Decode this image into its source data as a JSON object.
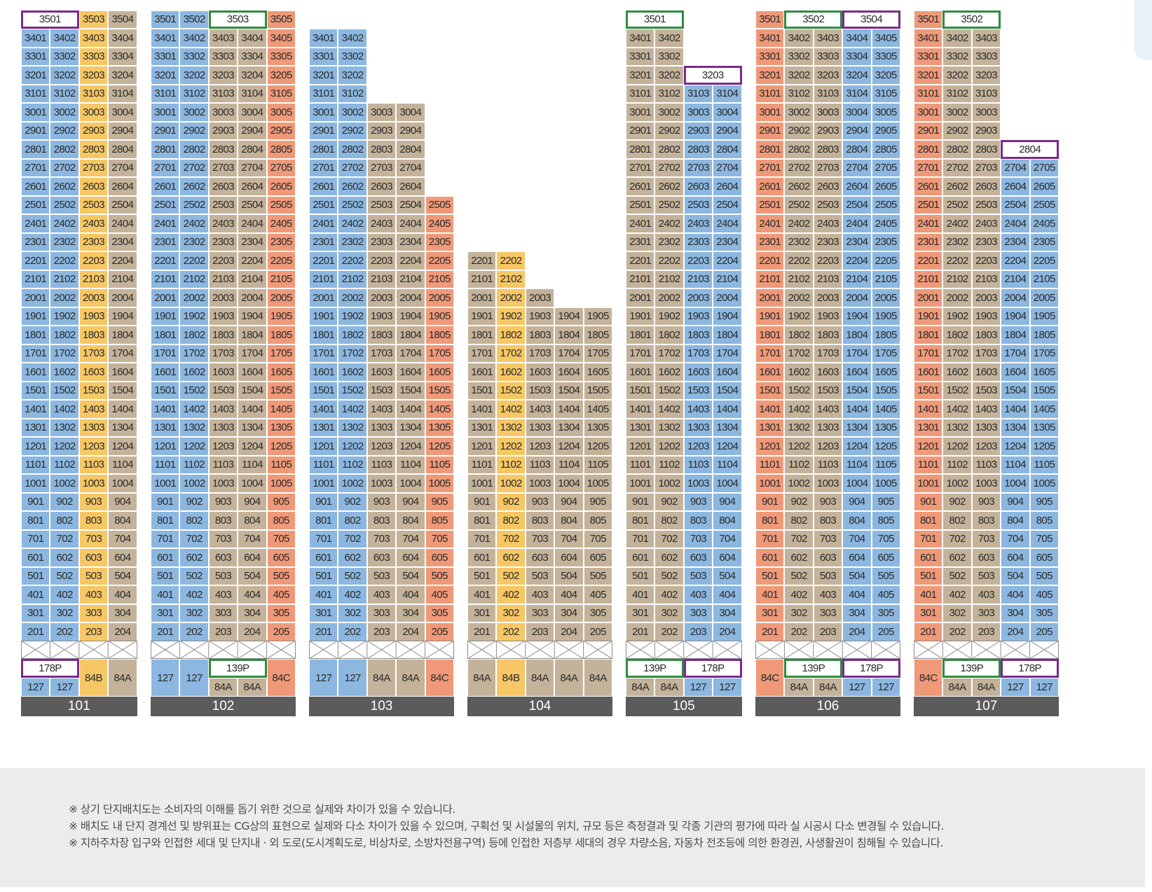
{
  "colors": {
    "blue": "#8cb7e0",
    "yellow": "#f6c764",
    "tan": "#c4b39a",
    "salmon": "#ef9979",
    "outline_purple": "#7a2a8c",
    "outline_green": "#2e8b3e"
  },
  "buildings": [
    {
      "name": "101",
      "columns": [
        {
          "color": "blue",
          "top": 35,
          "highlight": {
            "floor": 35,
            "outline": "purple",
            "span": 2
          }
        },
        {
          "color": "blue",
          "top": 34
        },
        {
          "color": "yellow",
          "top": 35
        },
        {
          "color": "tan",
          "top": 35
        }
      ],
      "pilotis": [
        {
          "cols": [
            0,
            1
          ],
          "top_label": "178P",
          "top_outline": "purple",
          "bottom": [
            "127",
            "127"
          ],
          "color": "blue"
        },
        {
          "cols": [
            2
          ],
          "label": "84B",
          "color": "yellow"
        },
        {
          "cols": [
            3
          ],
          "label": "84A",
          "color": "tan"
        }
      ]
    },
    {
      "name": "102",
      "columns": [
        {
          "color": "blue",
          "top": 35
        },
        {
          "color": "blue",
          "top": 35
        },
        {
          "color": "tan",
          "top": 35,
          "highlight": {
            "floor": 35,
            "outline": "green",
            "span": 2
          }
        },
        {
          "color": "tan",
          "top": 34
        },
        {
          "color": "salmon",
          "top": 35
        }
      ],
      "pilotis": [
        {
          "cols": [
            0
          ],
          "label": "127",
          "color": "blue"
        },
        {
          "cols": [
            1
          ],
          "label": "127",
          "color": "blue"
        },
        {
          "cols": [
            2,
            3
          ],
          "top_label": "139P",
          "top_outline": "green",
          "bottom": [
            "84A",
            "84A"
          ],
          "color": "tan"
        },
        {
          "cols": [
            4
          ],
          "label": "84C",
          "color": "salmon"
        }
      ]
    },
    {
      "name": "103",
      "columns": [
        {
          "color": "blue",
          "top": 34
        },
        {
          "color": "blue",
          "top": 34
        },
        {
          "color": "tan",
          "top": 30
        },
        {
          "color": "tan",
          "top": 30
        },
        {
          "color": "salmon",
          "top": 25
        }
      ],
      "pilotis": [
        {
          "cols": [
            0
          ],
          "label": "127",
          "color": "blue"
        },
        {
          "cols": [
            1
          ],
          "label": "127",
          "color": "blue"
        },
        {
          "cols": [
            2
          ],
          "label": "84A",
          "color": "tan"
        },
        {
          "cols": [
            3
          ],
          "label": "84A",
          "color": "tan"
        },
        {
          "cols": [
            4
          ],
          "label": "84C",
          "color": "salmon"
        }
      ]
    },
    {
      "name": "104",
      "columns": [
        {
          "color": "tan",
          "top": 22
        },
        {
          "color": "yellow",
          "top": 22
        },
        {
          "color": "tan",
          "top": 20
        },
        {
          "color": "tan",
          "top": 19
        },
        {
          "color": "tan",
          "top": 19
        }
      ],
      "pilotis": [
        {
          "cols": [
            0
          ],
          "label": "84A",
          "color": "tan"
        },
        {
          "cols": [
            1
          ],
          "label": "84B",
          "color": "yellow"
        },
        {
          "cols": [
            2
          ],
          "label": "84A",
          "color": "tan"
        },
        {
          "cols": [
            3
          ],
          "label": "84A",
          "color": "tan"
        },
        {
          "cols": [
            4
          ],
          "label": "84A",
          "color": "tan"
        }
      ]
    },
    {
      "name": "105",
      "columns": [
        {
          "color": "tan",
          "top": 35,
          "highlight": {
            "floor": 35,
            "outline": "green",
            "span": 2
          }
        },
        {
          "color": "tan",
          "top": 34
        },
        {
          "color": "blue",
          "top": 32,
          "highlight": {
            "floor": 32,
            "outline": "purple",
            "span": 2
          }
        },
        {
          "color": "blue",
          "top": 31
        }
      ],
      "pilotis": [
        {
          "cols": [
            0,
            1
          ],
          "top_label": "139P",
          "top_outline": "green",
          "bottom": [
            "84A",
            "84A"
          ],
          "color": "tan"
        },
        {
          "cols": [
            2,
            3
          ],
          "top_label": "178P",
          "top_outline": "purple",
          "bottom": [
            "127",
            "127"
          ],
          "color": "blue"
        }
      ]
    },
    {
      "name": "106",
      "columns": [
        {
          "color": "salmon",
          "top": 35
        },
        {
          "color": "tan",
          "top": 35,
          "highlight": {
            "floor": 35,
            "outline": "green",
            "span": 2
          }
        },
        {
          "color": "tan",
          "top": 34
        },
        {
          "color": "blue",
          "top": 35,
          "highlight": {
            "floor": 35,
            "outline": "purple",
            "span": 2
          }
        },
        {
          "color": "blue",
          "top": 34
        }
      ],
      "pilotis": [
        {
          "cols": [
            0
          ],
          "label": "84C",
          "color": "salmon"
        },
        {
          "cols": [
            1,
            2
          ],
          "top_label": "139P",
          "top_outline": "green",
          "bottom": [
            "84A",
            "84A"
          ],
          "color": "tan"
        },
        {
          "cols": [
            3,
            4
          ],
          "top_label": "178P",
          "top_outline": "purple",
          "bottom": [
            "127",
            "127"
          ],
          "color": "blue"
        }
      ]
    },
    {
      "name": "107",
      "columns": [
        {
          "color": "salmon",
          "top": 35
        },
        {
          "color": "tan",
          "top": 35,
          "highlight": {
            "floor": 35,
            "outline": "green",
            "span": 2
          }
        },
        {
          "color": "tan",
          "top": 34
        },
        {
          "color": "blue",
          "top": 28,
          "highlight": {
            "floor": 28,
            "outline": "purple",
            "span": 2
          }
        },
        {
          "color": "blue",
          "top": 27
        }
      ],
      "pilotis": [
        {
          "cols": [
            0
          ],
          "label": "84C",
          "color": "salmon"
        },
        {
          "cols": [
            1,
            2
          ],
          "top_label": "139P",
          "top_outline": "green",
          "bottom": [
            "84A",
            "84A"
          ],
          "color": "tan"
        },
        {
          "cols": [
            3,
            4
          ],
          "top_label": "178P",
          "top_outline": "purple",
          "bottom": [
            "127",
            "127"
          ],
          "color": "blue"
        }
      ]
    }
  ],
  "notes": [
    "※ 상기 단지배치도는 소비자의 이해를 돕기 위한 것으로 실제와 차이가 있을 수 있습니다.",
    "※ 배치도 내 단지 경계선 및 방위표는 CG상의 표현으로 실제와 다소 차이가 있을 수 있으며, 구획선 및 시설물의 위치, 규모 등은 측정결과 및 각종 기관의 평가에 따라 실 시공시 다소 변경될 수 있습니다.",
    "※ 지하주차장 입구와 인접한 세대 및 단지내 · 외 도로(도시계획도로, 비상차로, 소방차전용구역) 등에 인접한 저층부 세대의 경우 차량소음, 자동차 전조등에 의한 환경권, 사생활권이 침해될 수 있습니다."
  ]
}
